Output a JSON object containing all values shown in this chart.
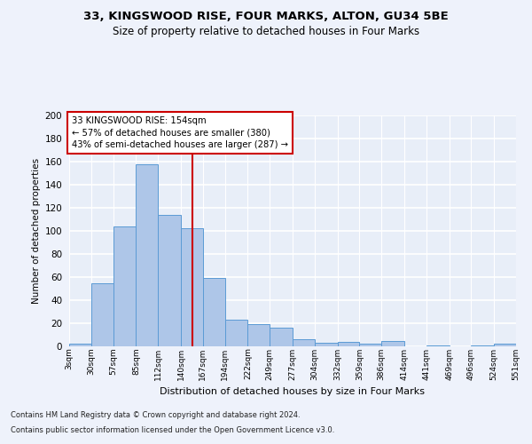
{
  "title1": "33, KINGSWOOD RISE, FOUR MARKS, ALTON, GU34 5BE",
  "title2": "Size of property relative to detached houses in Four Marks",
  "xlabel": "Distribution of detached houses by size in Four Marks",
  "ylabel": "Number of detached properties",
  "footer1": "Contains HM Land Registry data © Crown copyright and database right 2024.",
  "footer2": "Contains public sector information licensed under the Open Government Licence v3.0.",
  "property_label": "33 KINGSWOOD RISE: 154sqm",
  "annotation_line1": "← 57% of detached houses are smaller (380)",
  "annotation_line2": "43% of semi-detached houses are larger (287) →",
  "bin_edges": [
    3,
    30,
    57,
    85,
    112,
    140,
    167,
    194,
    222,
    249,
    277,
    304,
    332,
    359,
    386,
    414,
    441,
    469,
    496,
    524,
    551
  ],
  "bar_heights": [
    2,
    55,
    104,
    158,
    114,
    102,
    59,
    23,
    19,
    16,
    6,
    3,
    4,
    2,
    5,
    0,
    1,
    0,
    1,
    2
  ],
  "bar_color": "#aec6e8",
  "bar_edge_color": "#5b9bd5",
  "vline_x": 154,
  "vline_color": "#cc0000",
  "bg_color": "#eef2fb",
  "plot_bg_color": "#e8eef8",
  "grid_color": "white",
  "annotation_border_color": "#cc0000",
  "ylim": [
    0,
    200
  ],
  "yticks": [
    0,
    20,
    40,
    60,
    80,
    100,
    120,
    140,
    160,
    180,
    200
  ]
}
